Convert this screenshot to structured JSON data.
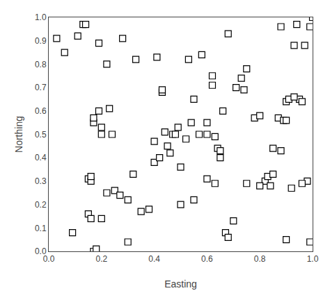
{
  "chart_data": {
    "type": "scatter",
    "xlabel": "Easting",
    "ylabel": "Northing",
    "x": [
      0.03,
      0.06,
      0.09,
      0.11,
      0.13,
      0.14,
      0.15,
      0.16,
      0.16,
      0.17,
      0.17,
      0.17,
      0.18,
      0.19,
      0.2,
      0.2,
      0.22,
      0.22,
      0.23,
      0.24,
      0.25,
      0.27,
      0.3,
      0.32,
      0.35,
      0.38,
      0.4,
      0.4,
      0.41,
      0.43,
      0.43,
      0.44,
      0.45,
      0.46,
      0.47,
      0.48,
      0.49,
      0.5,
      0.52,
      0.53,
      0.54,
      0.55,
      0.57,
      0.58,
      0.6,
      0.6,
      0.62,
      0.62,
      0.63,
      0.64,
      0.65,
      0.66,
      0.67,
      0.68,
      0.7,
      0.71,
      0.73,
      0.74,
      0.75,
      0.78,
      0.8,
      0.82,
      0.83,
      0.84,
      0.85,
      0.87,
      0.88,
      0.89,
      0.9,
      0.9,
      0.91,
      0.92,
      0.93,
      0.94,
      0.95,
      0.96,
      0.97,
      0.98,
      0.99,
      1.0,
      0.15,
      0.16,
      0.19,
      0.2,
      0.28,
      0.3,
      0.33,
      0.42,
      0.5,
      0.55,
      0.6,
      0.63,
      0.65,
      0.68,
      0.75,
      0.8,
      0.85,
      0.88,
      0.9,
      0.93,
      0.96,
      0.99
    ],
    "values": [
      0.91,
      0.85,
      0.08,
      0.92,
      0.97,
      0.97,
      0.31,
      0.3,
      0.32,
      0.55,
      0.57,
      0.0,
      0.01,
      0.6,
      0.14,
      0.5,
      0.25,
      0.8,
      0.61,
      0.5,
      0.26,
      0.24,
      0.04,
      0.33,
      0.17,
      0.18,
      0.47,
      0.38,
      0.83,
      0.68,
      0.69,
      0.51,
      0.45,
      0.42,
      0.5,
      0.5,
      0.53,
      0.36,
      0.48,
      0.82,
      0.55,
      0.65,
      0.5,
      0.84,
      0.31,
      0.5,
      0.75,
      0.71,
      0.49,
      0.44,
      0.43,
      0.6,
      0.08,
      0.06,
      0.13,
      0.7,
      0.74,
      0.69,
      0.78,
      0.57,
      0.58,
      0.3,
      0.32,
      0.28,
      0.44,
      0.57,
      0.43,
      0.56,
      0.56,
      0.64,
      0.65,
      0.27,
      0.88,
      0.97,
      0.65,
      0.64,
      0.88,
      0.3,
      0.96,
      1.0,
      0.16,
      0.14,
      0.89,
      0.53,
      0.91,
      0.22,
      0.82,
      0.4,
      0.2,
      0.22,
      0.55,
      0.29,
      0.4,
      0.93,
      0.29,
      0.28,
      0.33,
      0.96,
      0.05,
      0.66,
      0.29,
      0.04
    ],
    "marker": "square",
    "color": "black",
    "xlim": [
      0,
      1
    ],
    "ylim": [
      0,
      1
    ],
    "xticks": [
      {
        "value": 0,
        "label": "0.0"
      },
      0.2,
      0.4,
      0.6,
      0.8,
      {
        "value": 1.0,
        "label": "1.0"
      }
    ],
    "yticks": [
      {
        "value": 0,
        "label": "0.0"
      },
      0.1,
      0.2,
      0.3,
      0.4,
      0.5,
      0.6,
      0.7,
      0.8,
      0.9,
      {
        "value": 1.0,
        "label": "1.0"
      }
    ],
    "grid": false
  }
}
